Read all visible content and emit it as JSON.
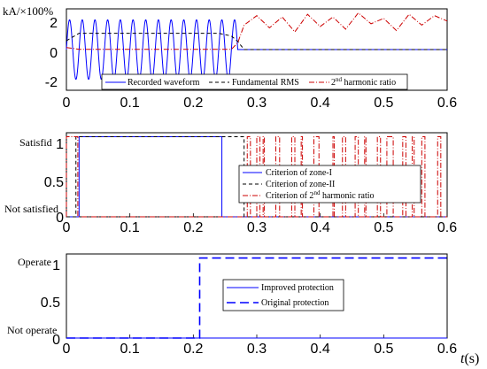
{
  "chart_data": [
    {
      "type": "line",
      "ylabel_top": "kA/×100%",
      "xlim": [
        0,
        0.6
      ],
      "ylim": [
        -3,
        3
      ],
      "xticks": [
        "0",
        "0.1",
        "0.2",
        "0.3",
        "0.4",
        "0.5",
        "0.6"
      ],
      "yticks": [
        "2",
        "0",
        "-2"
      ],
      "legend_position": "bottom-center",
      "series": [
        {
          "name": "Recorded waveform",
          "color": "#0000ff",
          "style": "solid",
          "description_fault": {
            "t_start": 0.0,
            "t_end": 0.27,
            "amplitude": 2.2,
            "frequency_hz": 50,
            "after": 0
          }
        },
        {
          "name": "Fundamental RMS",
          "color": "#000000",
          "style": "dashed",
          "values": [
            [
              0.0,
              0.65
            ],
            [
              0.02,
              1.2
            ],
            [
              0.24,
              1.2
            ],
            [
              0.26,
              1.0
            ],
            [
              0.27,
              0.6
            ],
            [
              0.28,
              0.0
            ],
            [
              0.6,
              0.0
            ]
          ]
        },
        {
          "name": "2nd harmonic ratio",
          "name_prefix": "2",
          "name_sup": "nd",
          "name_suffix": " harmonic ratio",
          "color": "#cc0000",
          "style": "dash-dot",
          "values": [
            [
              0.0,
              0.15
            ],
            [
              0.02,
              0.02
            ],
            [
              0.26,
              0.02
            ],
            [
              0.27,
              0.5
            ],
            [
              0.28,
              1.8
            ],
            [
              0.3,
              2.5
            ],
            [
              0.32,
              1.6
            ],
            [
              0.34,
              2.4
            ],
            [
              0.36,
              1.3
            ],
            [
              0.38,
              2.6
            ],
            [
              0.4,
              1.7
            ],
            [
              0.42,
              2.4
            ],
            [
              0.44,
              1.5
            ],
            [
              0.46,
              2.7
            ],
            [
              0.48,
              1.9
            ],
            [
              0.5,
              2.3
            ],
            [
              0.52,
              1.4
            ],
            [
              0.54,
              2.6
            ],
            [
              0.56,
              1.8
            ],
            [
              0.58,
              2.5
            ],
            [
              0.6,
              2.1
            ]
          ]
        }
      ]
    },
    {
      "type": "line",
      "xlim": [
        0,
        0.6
      ],
      "ylim": [
        0,
        1.05
      ],
      "xticks": [
        "0",
        "0.1",
        "0.2",
        "0.3",
        "0.4",
        "0.5",
        "0.6"
      ],
      "yticks": [
        "1",
        "0.5",
        "0"
      ],
      "ylabel_top": "Satisfid",
      "ylabel_bottom": "Not satisfied",
      "legend_position": "center-right",
      "series": [
        {
          "name": "Criterion of zone-I",
          "color": "#0000ff",
          "style": "solid",
          "values": [
            [
              0.0,
              0
            ],
            [
              0.02,
              0
            ],
            [
              0.02,
              1
            ],
            [
              0.245,
              1
            ],
            [
              0.245,
              0
            ],
            [
              0.6,
              0
            ]
          ]
        },
        {
          "name": "Criterion of zone-II",
          "color": "#000000",
          "style": "dashed",
          "values": [
            [
              0.0,
              0
            ],
            [
              0.015,
              0
            ],
            [
              0.015,
              1
            ],
            [
              0.28,
              1
            ],
            [
              0.28,
              0
            ],
            [
              0.6,
              0
            ]
          ]
        },
        {
          "name": "Criterion of 2nd harmonic ratio",
          "name_prefix": "Criterion of 2",
          "name_sup": "nd",
          "name_suffix": " harmonic ratio",
          "color": "#cc0000",
          "style": "dash-dot",
          "high_intervals": [
            [
              0.0,
              0.018
            ],
            [
              0.285,
              0.29
            ],
            [
              0.3,
              0.305
            ],
            [
              0.31,
              0.312
            ],
            [
              0.33,
              0.336
            ],
            [
              0.355,
              0.36
            ],
            [
              0.37,
              0.372
            ],
            [
              0.39,
              0.398
            ],
            [
              0.42,
              0.422
            ],
            [
              0.435,
              0.44
            ],
            [
              0.455,
              0.46
            ],
            [
              0.47,
              0.472
            ],
            [
              0.49,
              0.495
            ],
            [
              0.505,
              0.515
            ],
            [
              0.53,
              0.535
            ],
            [
              0.545,
              0.548
            ],
            [
              0.56,
              0.565
            ],
            [
              0.585,
              0.59
            ]
          ]
        }
      ]
    },
    {
      "type": "line",
      "xlim": [
        0,
        0.6
      ],
      "ylim": [
        0,
        1.05
      ],
      "xticks": [
        "0",
        "0.1",
        "0.2",
        "0.3",
        "0.4",
        "0.5",
        "0.6"
      ],
      "yticks": [
        "1",
        "0.5",
        "0"
      ],
      "ylabel_top": "Operate",
      "ylabel_bottom": "Not operate",
      "xlabel_var": "t",
      "xlabel_unit": "(s)",
      "legend_position": "center",
      "series": [
        {
          "name": "Improved protection",
          "color": "#0000ff",
          "style": "solid",
          "values": [
            [
              0.0,
              0
            ],
            [
              0.6,
              0
            ]
          ]
        },
        {
          "name": "Original protection",
          "color": "#0000ff",
          "style": "long-dash",
          "values": [
            [
              0.0,
              0
            ],
            [
              0.21,
              0
            ],
            [
              0.21,
              1
            ],
            [
              0.6,
              1
            ]
          ]
        }
      ]
    }
  ]
}
